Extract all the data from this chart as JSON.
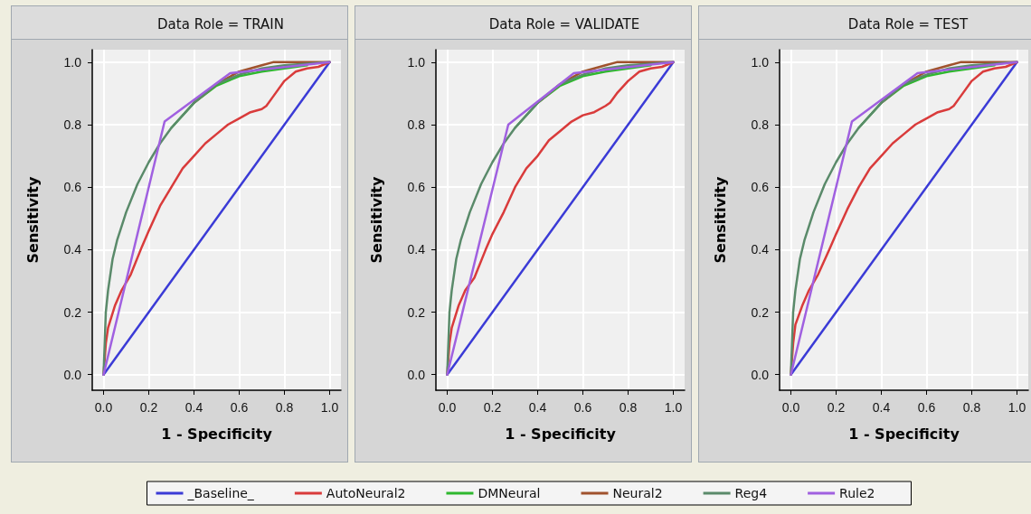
{
  "chart_data": [
    {
      "type": "line",
      "title": "Data Role = TRAIN",
      "xlabel": "1 - Specificity",
      "ylabel": "Sensitivity",
      "xlim": [
        -0.05,
        1.05
      ],
      "ylim": [
        -0.05,
        1.04
      ],
      "xticks": [
        {
          "value": 0,
          "label": "0.0"
        },
        {
          "value": 0.2,
          "label": "0.2"
        },
        {
          "value": 0.4,
          "label": "0.4"
        },
        {
          "value": 0.6,
          "label": "0.6"
        },
        {
          "value": 0.8,
          "label": "0.8"
        },
        {
          "value": 1,
          "label": "1.0"
        }
      ],
      "yticks": [
        {
          "value": 0,
          "label": "0.0"
        },
        {
          "value": 0.2,
          "label": "0.2"
        },
        {
          "value": 0.4,
          "label": "0.4"
        },
        {
          "value": 0.6,
          "label": "0.6"
        },
        {
          "value": 0.8,
          "label": "0.8"
        },
        {
          "value": 1,
          "label": "1.0"
        }
      ],
      "grid": true,
      "legend": "bottom",
      "marker": "none",
      "line_style": "solid",
      "series": [
        {
          "name": "_Baseline_",
          "color": "#3b3bd6",
          "x": [
            0,
            1
          ],
          "values": [
            0,
            1
          ]
        },
        {
          "name": "AutoNeural2",
          "color": "#d93b3b",
          "x": [
            0,
            0.01,
            0.02,
            0.05,
            0.08,
            0.12,
            0.17,
            0.2,
            0.25,
            0.3,
            0.35,
            0.4,
            0.45,
            0.5,
            0.55,
            0.6,
            0.65,
            0.7,
            0.72,
            0.75,
            0.8,
            0.85,
            0.9,
            0.95,
            1
          ],
          "values": [
            0,
            0.1,
            0.15,
            0.22,
            0.27,
            0.32,
            0.41,
            0.46,
            0.54,
            0.6,
            0.66,
            0.7,
            0.74,
            0.77,
            0.8,
            0.82,
            0.84,
            0.85,
            0.86,
            0.89,
            0.94,
            0.97,
            0.98,
            0.985,
            1
          ]
        },
        {
          "name": "DMNeural",
          "color": "#2eb82e",
          "x": [
            0.3,
            0.4,
            0.5,
            0.6,
            0.7,
            0.8,
            0.9
          ],
          "values": [
            0.79,
            0.87,
            0.925,
            0.955,
            0.97,
            0.98,
            0.99
          ]
        },
        {
          "name": "Neural2",
          "color": "#a0522d",
          "x": [
            0.4,
            0.5,
            0.6,
            0.7,
            0.75,
            1
          ],
          "values": [
            0.87,
            0.93,
            0.97,
            0.99,
            1,
            1
          ]
        },
        {
          "name": "Reg4",
          "color": "#5a8a6a",
          "x": [
            0,
            0.005,
            0.01,
            0.02,
            0.04,
            0.06,
            0.1,
            0.15,
            0.2,
            0.25,
            0.3,
            0.4,
            0.5,
            0.6,
            0.7,
            0.8,
            0.9,
            1
          ],
          "values": [
            0,
            0.1,
            0.2,
            0.27,
            0.37,
            0.43,
            0.52,
            0.61,
            0.68,
            0.74,
            0.79,
            0.87,
            0.93,
            0.96,
            0.98,
            0.99,
            0.995,
            1
          ]
        },
        {
          "name": "Rule2",
          "color": "#a060e0",
          "x": [
            0,
            0.27,
            0.56,
            1
          ],
          "values": [
            0,
            0.81,
            0.965,
            1
          ]
        }
      ]
    },
    {
      "type": "line",
      "title": "Data Role = VALIDATE",
      "xlabel": "1 - Specificity",
      "ylabel": "Sensitivity",
      "xlim": [
        -0.05,
        1.05
      ],
      "ylim": [
        -0.05,
        1.04
      ],
      "xticks": [
        {
          "value": 0,
          "label": "0.0"
        },
        {
          "value": 0.2,
          "label": "0.2"
        },
        {
          "value": 0.4,
          "label": "0.4"
        },
        {
          "value": 0.6,
          "label": "0.6"
        },
        {
          "value": 0.8,
          "label": "0.8"
        },
        {
          "value": 1,
          "label": "1.0"
        }
      ],
      "yticks": [
        {
          "value": 0,
          "label": "0.0"
        },
        {
          "value": 0.2,
          "label": "0.2"
        },
        {
          "value": 0.4,
          "label": "0.4"
        },
        {
          "value": 0.6,
          "label": "0.6"
        },
        {
          "value": 0.8,
          "label": "0.8"
        },
        {
          "value": 1,
          "label": "1.0"
        }
      ],
      "grid": true,
      "marker": "none",
      "line_style": "solid",
      "series": [
        {
          "color": "#3b3bd6",
          "x": [
            0,
            1
          ],
          "values": [
            0,
            1
          ]
        },
        {
          "color": "#d93b3b",
          "x": [
            0,
            0.01,
            0.02,
            0.05,
            0.08,
            0.12,
            0.17,
            0.2,
            0.25,
            0.3,
            0.35,
            0.4,
            0.45,
            0.5,
            0.55,
            0.6,
            0.65,
            0.7,
            0.72,
            0.75,
            0.8,
            0.85,
            0.9,
            0.95,
            1
          ],
          "values": [
            0,
            0.1,
            0.15,
            0.22,
            0.27,
            0.31,
            0.4,
            0.45,
            0.52,
            0.6,
            0.66,
            0.7,
            0.75,
            0.78,
            0.81,
            0.83,
            0.84,
            0.86,
            0.87,
            0.9,
            0.94,
            0.97,
            0.98,
            0.985,
            1
          ]
        },
        {
          "color": "#2eb82e",
          "x": [
            0.3,
            0.4,
            0.5,
            0.6,
            0.7,
            0.8,
            0.9
          ],
          "values": [
            0.79,
            0.87,
            0.925,
            0.955,
            0.97,
            0.98,
            0.99
          ]
        },
        {
          "color": "#a0522d",
          "x": [
            0.4,
            0.5,
            0.6,
            0.7,
            0.75,
            1
          ],
          "values": [
            0.87,
            0.93,
            0.97,
            0.99,
            1,
            1
          ]
        },
        {
          "color": "#5a8a6a",
          "x": [
            0,
            0.005,
            0.01,
            0.02,
            0.04,
            0.06,
            0.1,
            0.15,
            0.2,
            0.25,
            0.3,
            0.4,
            0.5,
            0.6,
            0.7,
            0.8,
            0.9,
            1
          ],
          "values": [
            0,
            0.1,
            0.2,
            0.27,
            0.37,
            0.43,
            0.52,
            0.61,
            0.68,
            0.74,
            0.79,
            0.87,
            0.93,
            0.96,
            0.98,
            0.99,
            0.995,
            1
          ]
        },
        {
          "color": "#a060e0",
          "x": [
            0,
            0.27,
            0.56,
            1
          ],
          "values": [
            0,
            0.8,
            0.965,
            1
          ]
        }
      ]
    },
    {
      "type": "line",
      "title": "Data Role = TEST",
      "xlabel": "1 - Specificity",
      "ylabel": "Sensitivity",
      "xlim": [
        -0.05,
        1.05
      ],
      "ylim": [
        -0.05,
        1.04
      ],
      "xticks": [
        {
          "value": 0,
          "label": "0.0"
        },
        {
          "value": 0.2,
          "label": "0.2"
        },
        {
          "value": 0.4,
          "label": "0.4"
        },
        {
          "value": 0.6,
          "label": "0.6"
        },
        {
          "value": 0.8,
          "label": "0.8"
        },
        {
          "value": 1,
          "label": "1.0"
        }
      ],
      "yticks": [
        {
          "value": 0,
          "label": "0.0"
        },
        {
          "value": 0.2,
          "label": "0.2"
        },
        {
          "value": 0.4,
          "label": "0.4"
        },
        {
          "value": 0.6,
          "label": "0.6"
        },
        {
          "value": 0.8,
          "label": "0.8"
        },
        {
          "value": 1,
          "label": "1.0"
        }
      ],
      "grid": true,
      "marker": "none",
      "line_style": "solid",
      "series": [
        {
          "color": "#3b3bd6",
          "x": [
            0,
            1
          ],
          "values": [
            0,
            1
          ]
        },
        {
          "color": "#d93b3b",
          "x": [
            0,
            0.01,
            0.02,
            0.05,
            0.08,
            0.12,
            0.17,
            0.2,
            0.25,
            0.3,
            0.35,
            0.4,
            0.45,
            0.5,
            0.55,
            0.6,
            0.65,
            0.7,
            0.72,
            0.75,
            0.8,
            0.85,
            0.9,
            0.95,
            1
          ],
          "values": [
            0,
            0.1,
            0.16,
            0.22,
            0.27,
            0.32,
            0.4,
            0.45,
            0.53,
            0.6,
            0.66,
            0.7,
            0.74,
            0.77,
            0.8,
            0.82,
            0.84,
            0.85,
            0.86,
            0.89,
            0.94,
            0.97,
            0.98,
            0.985,
            1
          ]
        },
        {
          "color": "#2eb82e",
          "x": [
            0.3,
            0.4,
            0.5,
            0.6,
            0.7,
            0.8,
            0.9
          ],
          "values": [
            0.79,
            0.87,
            0.925,
            0.955,
            0.97,
            0.98,
            0.99
          ]
        },
        {
          "color": "#a0522d",
          "x": [
            0.4,
            0.5,
            0.6,
            0.7,
            0.75,
            1
          ],
          "values": [
            0.87,
            0.93,
            0.97,
            0.99,
            1,
            1
          ]
        },
        {
          "color": "#5a8a6a",
          "x": [
            0,
            0.005,
            0.01,
            0.02,
            0.04,
            0.06,
            0.1,
            0.15,
            0.2,
            0.25,
            0.3,
            0.4,
            0.5,
            0.6,
            0.7,
            0.8,
            0.9,
            1
          ],
          "values": [
            0,
            0.1,
            0.2,
            0.27,
            0.37,
            0.43,
            0.52,
            0.61,
            0.68,
            0.74,
            0.79,
            0.87,
            0.93,
            0.96,
            0.98,
            0.99,
            0.995,
            1
          ]
        },
        {
          "color": "#a060e0",
          "x": [
            0,
            0.27,
            0.56,
            1
          ],
          "values": [
            0,
            0.81,
            0.965,
            1
          ]
        }
      ]
    }
  ]
}
